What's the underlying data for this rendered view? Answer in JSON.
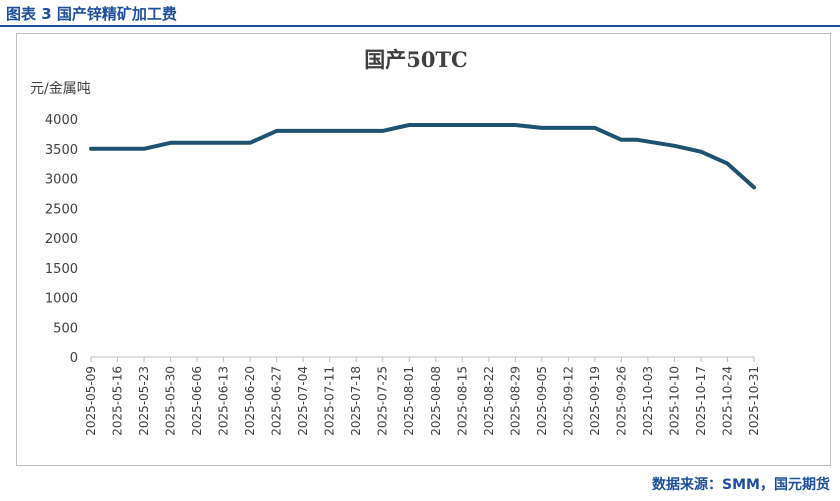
{
  "caption": "图表 3 国产锌精矿加工费",
  "source": "数据来源：SMM，国元期货",
  "colors": {
    "line": "#1f5270",
    "caption": "#1f4e9c",
    "axis": "#bfbfbf",
    "text": "#404040"
  },
  "chart_data": {
    "type": "line",
    "title": "国产50TC",
    "ylabel": "元/金属吨",
    "xlabel": "",
    "ylim": [
      0,
      4000
    ],
    "yticks": [
      0,
      500,
      1000,
      1500,
      2000,
      2500,
      3000,
      3500,
      4000
    ],
    "grid": false,
    "legend": "none",
    "categories": [
      "2025-05-09",
      "2025-05-16",
      "2025-05-23",
      "2025-05-30",
      "2025-06-06",
      "2025-06-13",
      "2025-06-20",
      "2025-06-27",
      "2025-07-04",
      "2025-07-11",
      "2025-07-18",
      "2025-07-25",
      "2025-08-01",
      "2025-08-08",
      "2025-08-15",
      "2025-08-22",
      "2025-08-29",
      "2025-09-05",
      "2025-09-12",
      "2025-09-19",
      "2025-09-26",
      "2025-10-03",
      "2025-10-10",
      "2025-10-17",
      "2025-10-24",
      "2025-10-31"
    ],
    "series": [
      {
        "values": [
          3500,
          3500,
          3500,
          3600,
          3600,
          3600,
          3600,
          3800,
          3800,
          3800,
          3800,
          3800,
          3900,
          3900,
          3900,
          3900,
          3900,
          3850,
          3850,
          3850,
          3650,
          3650,
          3550,
          3450,
          3250,
          2850
        ],
        "x_index": [
          0,
          1,
          2,
          3,
          4,
          5,
          6,
          7,
          8,
          9,
          10,
          11,
          12,
          13,
          14,
          15,
          16,
          17,
          18,
          19,
          20,
          20.6,
          22,
          23,
          24,
          25
        ]
      }
    ]
  }
}
